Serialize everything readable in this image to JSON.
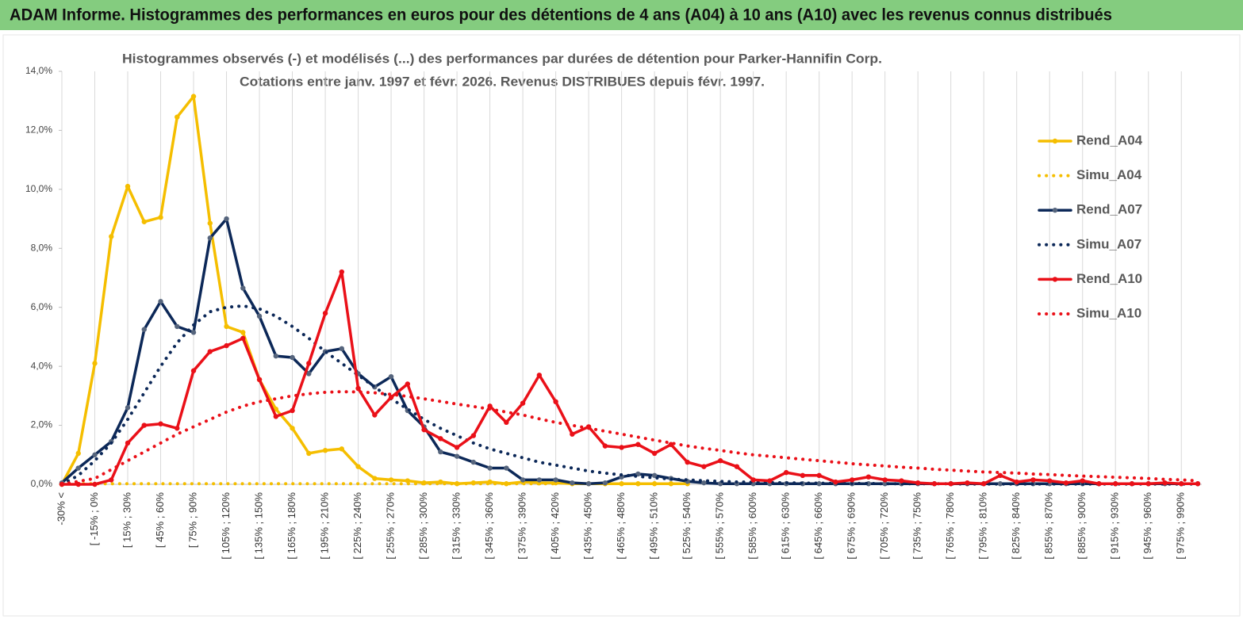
{
  "header": {
    "title": "ADAM Informe. Histogrammes des performances en euros pour des détentions de 4 ans (A04) à 10 ans (A10) avec les revenus connus distribués"
  },
  "chart_data": {
    "type": "line",
    "title": "Histogrammes observés (-) et modélisés (...) des performances par durées de détention pour Parker-Hannifin Corp.",
    "subtitle": "Cotations entre janv. 1997 et févr. 2026. Revenus  DISTRIBUES depuis févr. 1997.",
    "categories": [
      "-30% <",
      null,
      "[ -15% ; 0%",
      null,
      "[ 15% ; 30%",
      null,
      "[ 45% ; 60%",
      null,
      "[ 75% ; 90%",
      null,
      "[ 105% ; 120%",
      null,
      "[ 135% ; 150%",
      null,
      "[ 165% ; 180%",
      null,
      "[ 195% ; 210%",
      null,
      "[ 225% ; 240%",
      null,
      "[ 255% ; 270%",
      null,
      "[ 285% ; 300%",
      null,
      "[ 315% ; 330%",
      null,
      "[ 345% ; 360%",
      null,
      "[ 375% ; 390%",
      null,
      "[ 405% ; 420%",
      null,
      "[ 435% ; 450%",
      null,
      "[ 465% ; 480%",
      null,
      "[ 495% ; 510%",
      null,
      "[ 525% ; 540%",
      null,
      "[ 555% ; 570%",
      null,
      "[ 585% ; 600%",
      null,
      "[ 615% ; 630%",
      null,
      "[ 645% ; 660%",
      null,
      "[ 675% ; 690%",
      null,
      "[ 705% ; 720%",
      null,
      "[ 735% ; 750%",
      null,
      "[ 765% ; 780%",
      null,
      "[ 795% ; 810%",
      null,
      "[ 825% ; 840%",
      null,
      "[ 855% ; 870%",
      null,
      "[ 885% ; 900%",
      null,
      "[ 915% ; 930%",
      null,
      "[ 945% ; 960%",
      null,
      "[ 975% ; 990%",
      null
    ],
    "ylim": [
      0,
      14
    ],
    "yticks": [
      {
        "value": 0,
        "label": "0,0%"
      },
      {
        "value": 2,
        "label": "2,0%"
      },
      {
        "value": 4,
        "label": "4,0%"
      },
      {
        "value": 6,
        "label": "6,0%"
      },
      {
        "value": 8,
        "label": "8,0%"
      },
      {
        "value": 10,
        "label": "10,0%"
      },
      {
        "value": 12,
        "label": "12,0%"
      },
      {
        "value": 14,
        "label": "14,0%"
      }
    ],
    "grid": true,
    "legend": "right",
    "series": [
      {
        "name": "Rend_A04",
        "color": "#f5be00",
        "style": "solid",
        "markers": true,
        "marker_color": "#f5be00",
        "values": [
          0,
          1.05,
          4.1,
          8.4,
          10.1,
          8.9,
          9.05,
          12.45,
          13.15,
          8.85,
          5.35,
          5.15,
          3.55,
          2.55,
          1.9,
          1.05,
          1.15,
          1.2,
          0.6,
          0.2,
          0.15,
          0.12,
          0.05,
          0.08,
          0.02,
          0.05,
          0.08,
          0.02,
          0.08,
          0.05,
          0.05,
          0.02,
          0.02,
          0.02,
          0.02,
          0.02,
          0.02,
          0.02,
          0.02,
          null,
          null,
          null,
          null,
          null,
          null,
          null,
          null,
          null,
          null,
          null,
          null,
          null,
          null,
          null,
          null,
          null,
          null,
          null,
          null,
          null,
          null,
          null,
          null,
          null,
          null,
          null,
          null,
          null,
          null,
          null
        ]
      },
      {
        "name": "Simu_A04",
        "color": "#f5be00",
        "style": "dotted",
        "markers": false,
        "marker_color": "#f5be00",
        "values": [
          0.02,
          0.02,
          0.02,
          0.02,
          0.02,
          0.02,
          0.02,
          0.02,
          0.02,
          0.02,
          0.02,
          0.02,
          0.02,
          0.02,
          0.02,
          0.02,
          0.02,
          0.02,
          0.02,
          0.02,
          0.02,
          0.02,
          0.02,
          0.02,
          0.02,
          0.02,
          0.02,
          0.02,
          0.02,
          0.02,
          0.02,
          null,
          null,
          null,
          null,
          null,
          null,
          null,
          null,
          null,
          null,
          null,
          null,
          null,
          null,
          null,
          null,
          null,
          null,
          null,
          null,
          null,
          null,
          null,
          null,
          null,
          null,
          null,
          null,
          null,
          null,
          null,
          null,
          null,
          null,
          null,
          null,
          null,
          null,
          null
        ]
      },
      {
        "name": "Rend_A07",
        "color": "#0c2858",
        "style": "solid",
        "markers": true,
        "marker_color": "#56657d",
        "values": [
          0.05,
          0.55,
          1.0,
          1.45,
          2.6,
          5.25,
          6.2,
          5.35,
          5.15,
          8.35,
          9.0,
          6.65,
          5.7,
          4.35,
          4.3,
          3.75,
          4.5,
          4.6,
          3.75,
          3.3,
          3.65,
          2.5,
          1.95,
          1.1,
          0.95,
          0.75,
          0.55,
          0.55,
          0.15,
          0.15,
          0.15,
          0.05,
          0.02,
          0.05,
          0.25,
          0.35,
          0.3,
          0.2,
          0.1,
          0.05,
          0.02,
          0.02,
          0.02,
          0.02,
          0.02,
          0.02,
          0.02,
          0.02,
          0.02,
          0.02,
          0.02,
          0.02,
          0.02,
          0.02,
          0.02,
          0.02,
          0.02,
          0.02,
          0.02,
          0.02,
          0.02,
          0.02,
          0.02,
          0.02,
          0.02,
          0.02,
          0.02,
          0.02,
          0.02,
          0.02
        ]
      },
      {
        "name": "Simu_A07",
        "color": "#0c2858",
        "style": "dotted",
        "markers": false,
        "marker_color": "#0c2858",
        "values": [
          0,
          0.3,
          0.8,
          1.4,
          2.2,
          3.1,
          4.0,
          4.8,
          5.4,
          5.85,
          6.0,
          6.05,
          5.95,
          5.7,
          5.35,
          4.95,
          4.5,
          4.1,
          3.7,
          3.3,
          2.9,
          2.55,
          2.2,
          1.9,
          1.65,
          1.4,
          1.2,
          1.05,
          0.9,
          0.75,
          0.65,
          0.55,
          0.45,
          0.38,
          0.32,
          0.27,
          0.22,
          0.18,
          0.15,
          0.12,
          0.1,
          0.08,
          0.07,
          0.06,
          0.05,
          0.04,
          0.04,
          0.03,
          0.03,
          0.03,
          0.02,
          0.02,
          0.02,
          0.02,
          0.02,
          0.01,
          0.01,
          0.01,
          0.01,
          0.01,
          0.01,
          0.01,
          0.01,
          0.01,
          0.01,
          0.01,
          0.01,
          0.01,
          0.01,
          0.01
        ]
      },
      {
        "name": "Rend_A10",
        "color": "#ea1018",
        "style": "solid",
        "markers": true,
        "marker_color": "#ea1018",
        "values": [
          0,
          0,
          0,
          0.15,
          1.4,
          2.0,
          2.05,
          1.9,
          3.85,
          4.5,
          4.7,
          4.95,
          3.55,
          2.3,
          2.5,
          4.1,
          5.8,
          7.2,
          3.25,
          2.35,
          2.95,
          3.4,
          1.85,
          1.55,
          1.25,
          1.65,
          2.65,
          2.1,
          2.75,
          3.7,
          2.8,
          1.7,
          1.95,
          1.3,
          1.25,
          1.35,
          1.05,
          1.35,
          0.75,
          0.6,
          0.8,
          0.6,
          0.15,
          0.12,
          0.4,
          0.3,
          0.3,
          0.08,
          0.15,
          0.25,
          0.15,
          0.12,
          0.05,
          0.02,
          0.02,
          0.05,
          0.02,
          0.3,
          0.08,
          0.15,
          0.12,
          0.05,
          0.12,
          0.02,
          0.02,
          0.02,
          0.02,
          0.05,
          0.02,
          0.02
        ]
      },
      {
        "name": "Simu_A10",
        "color": "#ea1018",
        "style": "dotted",
        "markers": false,
        "marker_color": "#ea1018",
        "values": [
          0,
          0.1,
          0.2,
          0.5,
          0.8,
          1.1,
          1.4,
          1.7,
          1.95,
          2.2,
          2.45,
          2.65,
          2.8,
          2.9,
          3.0,
          3.07,
          3.12,
          3.14,
          3.13,
          3.1,
          3.05,
          2.98,
          2.9,
          2.81,
          2.72,
          2.64,
          2.55,
          2.45,
          2.35,
          2.22,
          2.1,
          2.0,
          1.9,
          1.8,
          1.7,
          1.6,
          1.5,
          1.4,
          1.3,
          1.22,
          1.15,
          1.07,
          1.0,
          0.95,
          0.9,
          0.85,
          0.8,
          0.75,
          0.7,
          0.66,
          0.62,
          0.58,
          0.55,
          0.51,
          0.48,
          0.45,
          0.42,
          0.4,
          0.38,
          0.35,
          0.33,
          0.3,
          0.28,
          0.26,
          0.24,
          0.22,
          0.2,
          0.17,
          0.15,
          0.12
        ]
      }
    ]
  }
}
